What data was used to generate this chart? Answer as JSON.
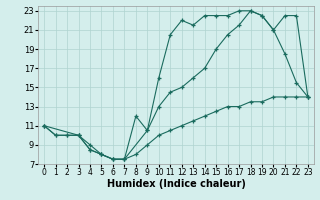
{
  "xlabel": "Humidex (Indice chaleur)",
  "background_color": "#d4eeec",
  "grid_color": "#afd4d0",
  "line_color": "#1a6b5e",
  "xlim": [
    -0.5,
    23.5
  ],
  "ylim": [
    7,
    23.5
  ],
  "xticks": [
    0,
    1,
    2,
    3,
    4,
    5,
    6,
    7,
    8,
    9,
    10,
    11,
    12,
    13,
    14,
    15,
    16,
    17,
    18,
    19,
    20,
    21,
    22,
    23
  ],
  "yticks": [
    7,
    9,
    11,
    13,
    15,
    17,
    19,
    21,
    23
  ],
  "curve1": {
    "x": [
      0,
      1,
      2,
      3,
      4,
      5,
      6,
      7,
      9,
      10,
      11,
      12,
      13,
      14,
      15,
      16,
      17,
      18,
      19,
      20,
      21,
      22,
      23
    ],
    "y": [
      11,
      10,
      10,
      10,
      8.5,
      8,
      7.5,
      7.5,
      10.5,
      16,
      20.5,
      22,
      21.5,
      22.5,
      22.5,
      22.5,
      23,
      23,
      22.5,
      21,
      18.5,
      15.5,
      14
    ]
  },
  "curve2": {
    "x": [
      0,
      3,
      4,
      5,
      6,
      7,
      8,
      9,
      10,
      11,
      12,
      13,
      14,
      15,
      16,
      17,
      18,
      19,
      20,
      21,
      22,
      23
    ],
    "y": [
      11,
      10,
      8.5,
      8,
      7.5,
      7.5,
      12,
      10.5,
      13,
      14.5,
      15,
      16,
      17,
      19,
      20.5,
      21.5,
      23,
      22.5,
      21,
      22.5,
      22.5,
      14
    ]
  },
  "curve3": {
    "x": [
      0,
      1,
      2,
      3,
      4,
      5,
      6,
      7,
      8,
      9,
      10,
      11,
      12,
      13,
      14,
      15,
      16,
      17,
      18,
      19,
      20,
      21,
      22,
      23
    ],
    "y": [
      11,
      10,
      10,
      10,
      9,
      8,
      7.5,
      7.5,
      8,
      9,
      10,
      10.5,
      11,
      11.5,
      12,
      12.5,
      13,
      13,
      13.5,
      13.5,
      14,
      14,
      14,
      14
    ]
  }
}
